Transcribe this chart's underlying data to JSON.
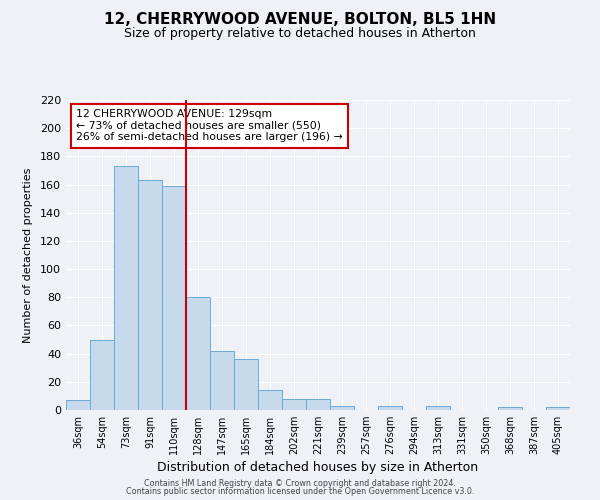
{
  "title": "12, CHERRYWOOD AVENUE, BOLTON, BL5 1HN",
  "subtitle": "Size of property relative to detached houses in Atherton",
  "xlabel": "Distribution of detached houses by size in Atherton",
  "ylabel": "Number of detached properties",
  "bin_labels": [
    "36sqm",
    "54sqm",
    "73sqm",
    "91sqm",
    "110sqm",
    "128sqm",
    "147sqm",
    "165sqm",
    "184sqm",
    "202sqm",
    "221sqm",
    "239sqm",
    "257sqm",
    "276sqm",
    "294sqm",
    "313sqm",
    "331sqm",
    "350sqm",
    "368sqm",
    "387sqm",
    "405sqm"
  ],
  "bar_heights": [
    7,
    50,
    173,
    163,
    159,
    80,
    42,
    36,
    14,
    8,
    8,
    3,
    0,
    3,
    0,
    3,
    0,
    0,
    2,
    0,
    2
  ],
  "bar_color": "#c6d9ed",
  "bar_edge_color": "#6aaad4",
  "vline_x": 4.5,
  "vline_color": "#cc0000",
  "annotation_title": "12 CHERRYWOOD AVENUE: 129sqm",
  "annotation_line1": "← 73% of detached houses are smaller (550)",
  "annotation_line2": "26% of semi-detached houses are larger (196) →",
  "annotation_box_color": "#cc0000",
  "ylim": [
    0,
    220
  ],
  "yticks": [
    0,
    20,
    40,
    60,
    80,
    100,
    120,
    140,
    160,
    180,
    200,
    220
  ],
  "footer1": "Contains HM Land Registry data © Crown copyright and database right 2024.",
  "footer2": "Contains public sector information licensed under the Open Government Licence v3.0.",
  "bg_color": "#eef2f7",
  "plot_bg_color": "#eef2f7",
  "grid_color": "#ffffff",
  "title_fontsize": 11,
  "subtitle_fontsize": 9,
  "ylabel_fontsize": 8,
  "xlabel_fontsize": 9
}
